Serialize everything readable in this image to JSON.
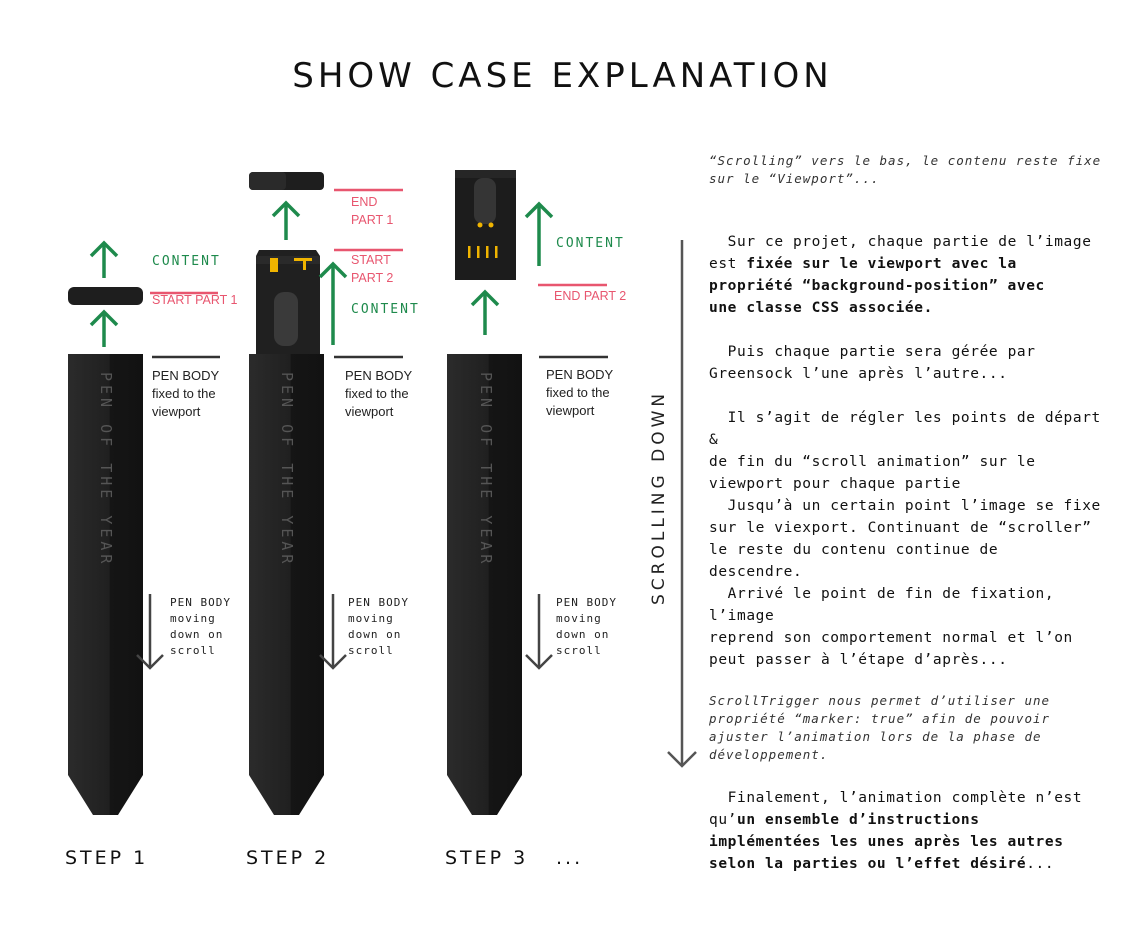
{
  "title": "SHOW CASE EXPLANATION",
  "pen_text": "PEN OF THE YEAR",
  "steps": [
    "STEP 1",
    "STEP 2",
    "STEP 3",
    "..."
  ],
  "labels": {
    "content": "CONTENT",
    "start_part_1": "START PART 1",
    "end_part_1": [
      "END",
      "PART 1"
    ],
    "start_part_2": [
      "START",
      "PART 2"
    ],
    "end_part_2": "END PART 2",
    "pen_body_fixed": [
      "PEN BODY",
      "fixed to the",
      "viewport"
    ],
    "pen_body_moving": [
      "PEN BODY",
      "moving",
      "down on",
      "scroll"
    ]
  },
  "scrolling_down": "SCROLLING DOWN",
  "note_top": "“Scrolling” vers le bas, le contenu reste fixe\nsur le “Viewport”...",
  "para1_a": "  Sur ce projet, chaque partie de l’image\nest ",
  "para1_b": "fixée sur le viewport avec la\npropriété “background-position” avec\nune classe CSS associée.",
  "para2": "  Puis chaque partie sera gérée par\nGreensock l’une après l’autre...",
  "para3": "  Il s’agit de régler les points de départ &\nde fin du “scroll animation” sur le\nviewport pour chaque partie",
  "para4": "  Jusqu’à un certain point l’image se fixe\nsur le viexport. Continuant de “scroller”\nle reste du contenu continue de\ndescendre.\n  Arrivé le point de fin de fixation, l’image\nreprend son comportement normal et l’on\npeut passer à l’étape d’après...",
  "note_bottom": "ScrollTrigger nous permet d’utiliser une\npropriété “marker: true” afin de pouvoir\najuster l’animation lors de la phase de\ndéveloppement.",
  "para5_a": "  Finalement, l’animation complète n’est\nqu’",
  "para5_b": "un ensemble d’instructions\nimplémentées les unes après les autres\nselon la parties ou l’effet désiré",
  "para5_c": "...",
  "colors": {
    "green": "#1e8a4c",
    "pink": "#e8566f",
    "pen": "#1c1c1c",
    "accent": "#f0b400"
  }
}
